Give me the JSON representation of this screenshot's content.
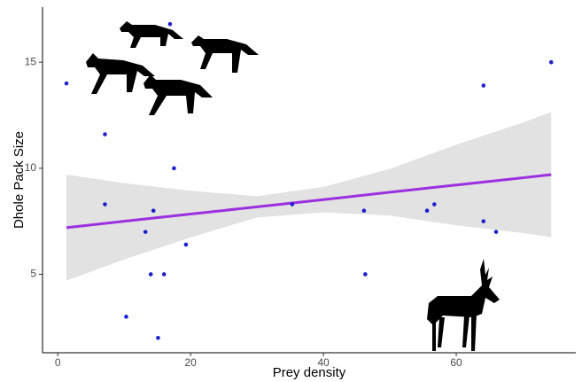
{
  "chart_data": {
    "type": "scatter",
    "x_label": "Prey density",
    "y_label": "Dhole Pack Size",
    "x": [
      1.3,
      7.1,
      7.1,
      10.3,
      13.2,
      14.0,
      14.4,
      15.1,
      16.0,
      16.9,
      17.5,
      19.3,
      35.3,
      46.1,
      46.3,
      55.6,
      56.7,
      64.1,
      64.1,
      66.0,
      74.3
    ],
    "values": [
      14.0,
      11.6,
      8.3,
      3.0,
      7.0,
      5.0,
      8.0,
      2.0,
      5.0,
      16.8,
      10.0,
      6.4,
      8.3,
      8.0,
      5.0,
      8.0,
      8.3,
      13.9,
      7.5,
      7.0,
      15.0
    ],
    "color": "#1f1fd0",
    "fit": {
      "x": [
        1.3,
        10,
        20,
        30,
        40,
        50,
        60,
        70,
        74.3
      ],
      "y": [
        7.2,
        7.5,
        7.84,
        8.18,
        8.52,
        8.87,
        9.21,
        9.55,
        9.7
      ],
      "lower": [
        4.7,
        5.7,
        6.74,
        7.68,
        7.92,
        7.77,
        7.31,
        6.95,
        6.75
      ],
      "upper": [
        9.7,
        9.3,
        8.94,
        8.68,
        9.12,
        9.97,
        11.11,
        12.15,
        12.65
      ],
      "color": "#9b30e0",
      "band_color": "#e2e2e2"
    },
    "xlim": [
      -2.3,
      78
    ],
    "ylim": [
      1.3,
      17.6
    ],
    "xticks": [
      0,
      20,
      40,
      60
    ],
    "yticks": [
      5,
      10,
      15
    ]
  }
}
